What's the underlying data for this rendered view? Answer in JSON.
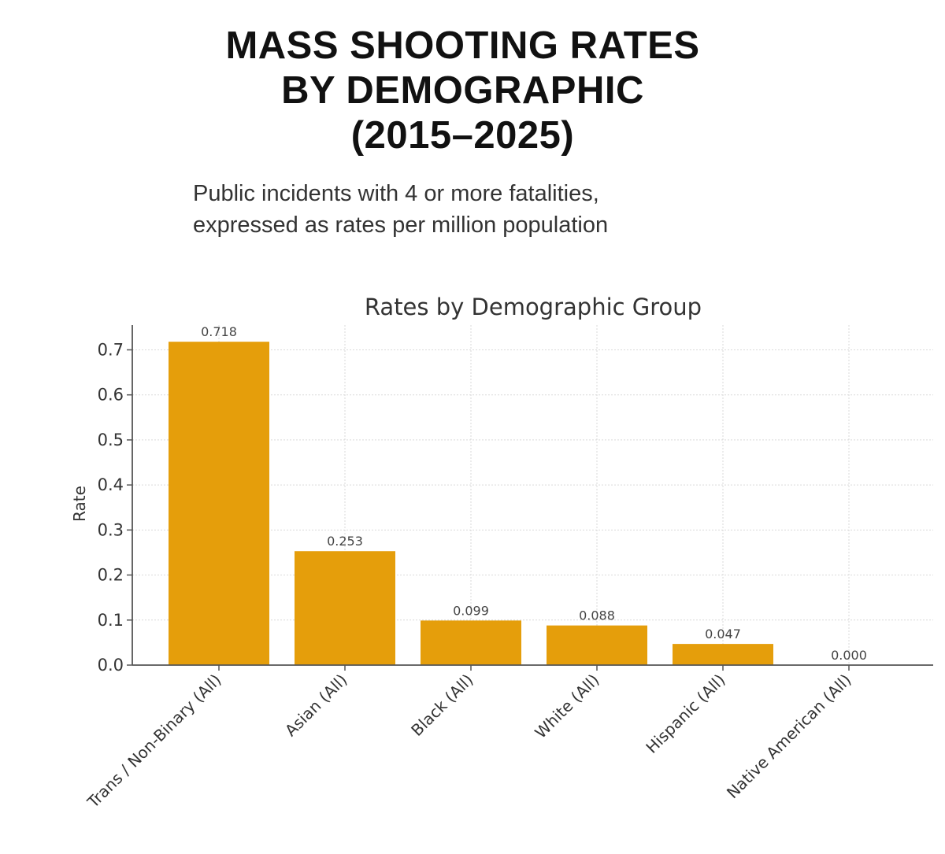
{
  "header": {
    "title_lines": [
      "MASS SHOOTING RATES",
      "BY DEMOGRAPHIC",
      "(2015–2025)"
    ],
    "subtitle_lines": [
      "Public incidents with 4 or more fatalities,",
      "expressed as rates per million population"
    ]
  },
  "chart_data": {
    "type": "bar",
    "title": "Rates by Demographic Group",
    "xlabel": "",
    "ylabel": "Rate",
    "categories": [
      "Trans / Non-Binary (All)",
      "Asian (All)",
      "Black (All)",
      "White (All)",
      "Hispanic (All)",
      "Native American (All)"
    ],
    "values": [
      0.718,
      0.253,
      0.099,
      0.088,
      0.047,
      0.0
    ],
    "value_labels": [
      "0.718",
      "0.253",
      "0.099",
      "0.088",
      "0.047",
      "0.000"
    ],
    "yticks": [
      0.0,
      0.1,
      0.2,
      0.3,
      0.4,
      0.5,
      0.6,
      0.7
    ],
    "ytick_labels": [
      "0.0",
      "0.1",
      "0.2",
      "0.3",
      "0.4",
      "0.5",
      "0.6",
      "0.7"
    ],
    "ylim": [
      0,
      0.755
    ],
    "grid": true,
    "bar_color": "#E59E0B",
    "grid_color": "#d9d9d9",
    "axis_color": "#555555"
  }
}
